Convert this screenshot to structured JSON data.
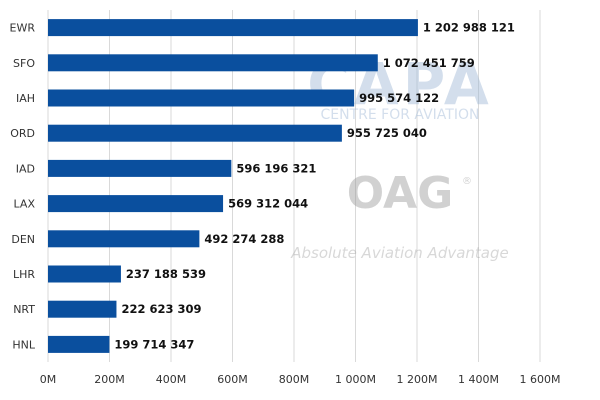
{
  "chart_data": {
    "type": "bar",
    "orientation": "horizontal",
    "categories": [
      "EWR",
      "SFO",
      "IAH",
      "ORD",
      "IAD",
      "LAX",
      "DEN",
      "LHR",
      "NRT",
      "HNL"
    ],
    "values": [
      1202988121,
      1072451759,
      995574122,
      955725040,
      596196321,
      569312044,
      492274288,
      237188539,
      222623309,
      199714347
    ],
    "value_labels": [
      "1 202 988 121",
      "1 072 451 759",
      "995 574 122",
      "955 725 040",
      "596 196 321",
      "569 312 044",
      "492 274 288",
      "237 188 539",
      "222 623 309",
      "199 714 347"
    ],
    "x_ticks": [
      0,
      200000000,
      400000000,
      600000000,
      800000000,
      1000000000,
      1200000000,
      1400000000,
      1600000000
    ],
    "x_tick_labels": [
      "0M",
      "200M",
      "400M",
      "600M",
      "800M",
      "1 000M",
      "1 200M",
      "1 400M",
      "1 600M"
    ],
    "xlim": [
      0,
      1600000000
    ],
    "grid": "vertical",
    "legend": "none",
    "bar_color": "#0a4f9e"
  },
  "watermarks": {
    "capa_big": "CAPA",
    "capa_small": "CENTRE FOR AVIATION",
    "oag_big": "OAG",
    "oag_reg": "®",
    "oag_tagline": "Absolute Aviation Advantage"
  }
}
